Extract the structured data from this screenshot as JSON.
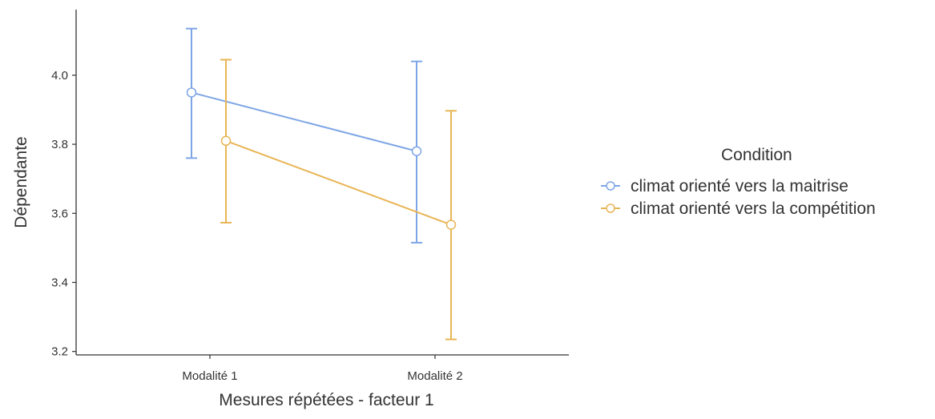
{
  "chart_data": {
    "type": "line",
    "categories": [
      "Modalité 1",
      "Modalité 2"
    ],
    "xlabel": "Mesures répétées - facteur 1",
    "ylabel": "Dépendante",
    "ylim": [
      3.19,
      4.19
    ],
    "yticks": [
      "3.2",
      "3.4",
      "3.6",
      "3.8",
      "4.0"
    ],
    "grid": false,
    "legend_position": "right",
    "legend_title": "Condition",
    "series": [
      {
        "name": "climat orienté vers la maitrise",
        "color": "#7ea6e6",
        "values": [
          3.95,
          3.78
        ],
        "error_low": [
          3.76,
          3.515
        ],
        "error_high": [
          4.135,
          4.04
        ]
      },
      {
        "name": "climat orienté vers la compétition",
        "color": "#e8b556",
        "values": [
          3.81,
          3.567
        ],
        "error_low": [
          3.573,
          3.235
        ],
        "error_high": [
          4.045,
          3.897
        ]
      }
    ]
  }
}
